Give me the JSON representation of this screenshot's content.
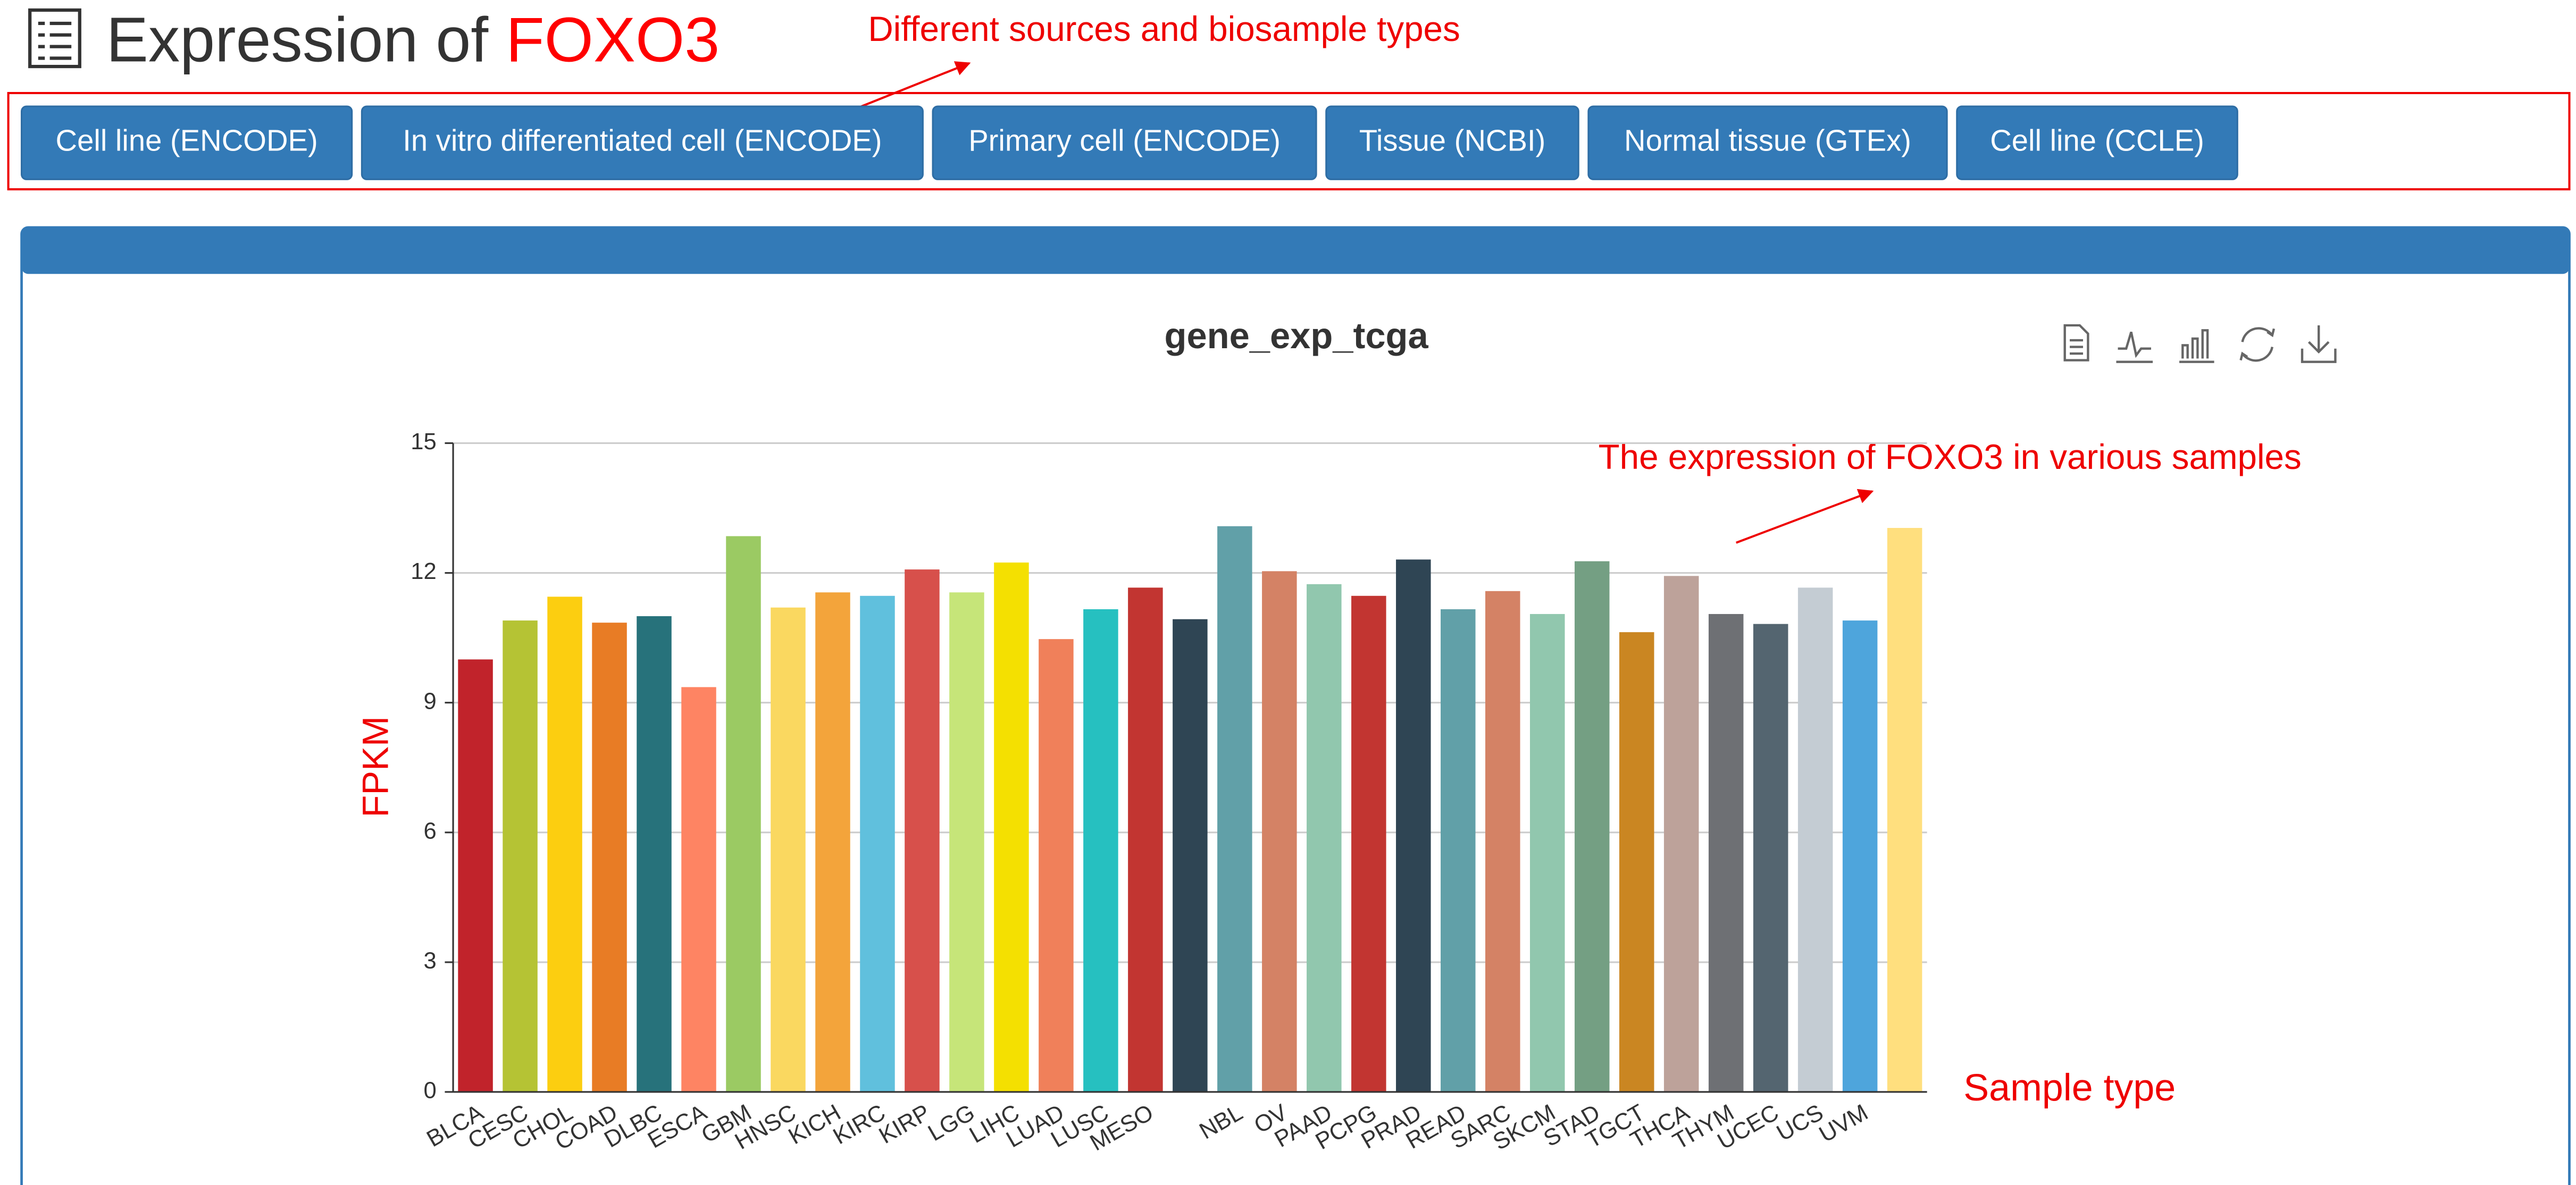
{
  "header": {
    "title": "Expression of",
    "gene": "FOXO3"
  },
  "annotation_sources": "Different sources and biosample types",
  "buttons": [
    "Cell line (ENCODE)",
    "In vitro differentiated cell (ENCODE)",
    "Primary cell (ENCODE)",
    "Tissue (NCBI)",
    "Normal tissue (GTEx)",
    "Cell line (CCLE)"
  ],
  "chart_data": {
    "type": "bar",
    "title": "gene_exp_tcga",
    "y_label": "FPKM",
    "x_label": "Sample type",
    "annotation": "The expression of FOXO3 in various samples",
    "categories": [
      "BLCA",
      "CESC",
      "CHOL",
      "COAD",
      "DLBC",
      "ESCA",
      "GBM",
      "HNSC",
      "KICH",
      "KIRC",
      "KIRP",
      "LGG",
      "LIHC",
      "LUAD",
      "LUSC",
      "MESO",
      null,
      "NBL",
      "OV",
      "PAAD",
      "PCPG",
      "PRAD",
      "READ",
      "SARC",
      "SKCM",
      "STAD",
      "TGCT",
      "THCA",
      "THYM",
      "UCEC",
      "UCS",
      "UVM",
      null
    ],
    "values": [
      10.0,
      10.9,
      11.45,
      10.85,
      11.0,
      9.36,
      12.85,
      11.2,
      11.55,
      11.47,
      12.08,
      11.55,
      12.24,
      10.47,
      11.16,
      11.66,
      10.93,
      13.08,
      12.04,
      11.74,
      11.47,
      12.31,
      11.16,
      11.58,
      11.05,
      12.27,
      10.63,
      11.93,
      11.05,
      10.82,
      11.66,
      10.9,
      13.04
    ],
    "colors": [
      "#c1232b",
      "#b5c334",
      "#fcce10",
      "#e87c25",
      "#27727b",
      "#fe8463",
      "#9bca63",
      "#fad860",
      "#f3a43b",
      "#60c0dd",
      "#d7504b",
      "#c6e579",
      "#f4e001",
      "#f0805a",
      "#26c0c0",
      "#c23531",
      "#2f4554",
      "#61a0a8",
      "#d48265",
      "#91c7ae",
      "#c23531",
      "#2f4554",
      "#61a0a8",
      "#d48265",
      "#91c7ae",
      "#749f83",
      "#ca8622",
      "#bda29a",
      "#6e7074",
      "#546570",
      "#c4ccd3",
      "#4ea5dc",
      "#ffdf7e"
    ],
    "ylim": [
      0,
      15
    ],
    "yticks": [
      0,
      3,
      6,
      9,
      12,
      15
    ],
    "grid": true
  }
}
